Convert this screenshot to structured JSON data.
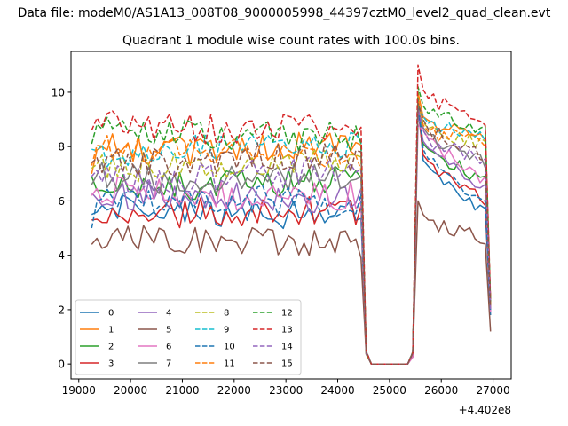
{
  "figure": {
    "suptitle": "Data file: modeM0/AS1A13_008T08_9000005998_44397cztM0_level2_quad_clean.evt",
    "title": "Quadrant 1 module wise count rates with 100.0s bins.",
    "x_offset_label": "+4.402e8"
  },
  "chart_data": {
    "type": "line",
    "title": "Quadrant 1 module wise count rates with 100.0s bins.",
    "xlabel": "",
    "ylabel": "",
    "x_offset": 440200000,
    "xlim": [
      18850,
      27350
    ],
    "ylim": [
      -0.55,
      11.5
    ],
    "grid": false,
    "legend_placement": "lower-left",
    "x_ticks": [
      19000,
      20000,
      21000,
      22000,
      23000,
      24000,
      25000,
      26000,
      27000
    ],
    "x_tick_labels": [
      "19000",
      "20000",
      "21000",
      "22000",
      "23000",
      "24000",
      "25000",
      "26000",
      "27000"
    ],
    "y_ticks": [
      0,
      2,
      4,
      6,
      8,
      10
    ],
    "y_tick_labels": [
      "0",
      "2",
      "4",
      "6",
      "8",
      "10"
    ],
    "segments": [
      {
        "start": 19250,
        "end": 24450,
        "step": 100
      },
      {
        "start": 24550,
        "end": 24650,
        "step": 100
      },
      {
        "start": 24750,
        "end": 25350,
        "step": 100
      },
      {
        "start": 25450,
        "end": 25550,
        "step": 100
      },
      {
        "start": 25550,
        "end": 26950,
        "step": 100
      }
    ],
    "series": [
      {
        "name": "0",
        "color": "#1f77b4",
        "dash": "solid",
        "level": 5.6,
        "first": 5.5,
        "peak": 9.8,
        "after": 7.2,
        "tail": 5.6,
        "end": 1.8
      },
      {
        "name": "1",
        "color": "#ff7f0e",
        "dash": "solid",
        "level": 8.0,
        "first": 7.0,
        "peak": 10.0,
        "after": 8.8,
        "tail": 8.4,
        "end": 2.2
      },
      {
        "name": "2",
        "color": "#2ca02c",
        "dash": "solid",
        "level": 6.6,
        "first": 6.9,
        "peak": 9.6,
        "after": 7.8,
        "tail": 6.8,
        "end": 1.9
      },
      {
        "name": "3",
        "color": "#d62728",
        "dash": "solid",
        "level": 5.5,
        "first": 5.3,
        "peak": 9.4,
        "after": 7.4,
        "tail": 6.0,
        "end": 1.9
      },
      {
        "name": "4",
        "color": "#9467bd",
        "dash": "solid",
        "level": 6.1,
        "first": 6.3,
        "peak": 9.2,
        "after": 7.9,
        "tail": 6.5,
        "end": 1.9
      },
      {
        "name": "5",
        "color": "#8c564b",
        "dash": "solid",
        "level": 4.5,
        "first": 4.4,
        "peak": 6.0,
        "after": 5.2,
        "tail": 4.6,
        "end": 1.2
      },
      {
        "name": "6",
        "color": "#e377c2",
        "dash": "solid",
        "level": 6.3,
        "first": 6.2,
        "peak": 8.8,
        "after": 8.3,
        "tail": 6.8,
        "end": 1.9
      },
      {
        "name": "7",
        "color": "#7f7f7f",
        "dash": "solid",
        "level": 6.9,
        "first": 6.6,
        "peak": 9.4,
        "after": 8.4,
        "tail": 7.4,
        "end": 2.0
      },
      {
        "name": "8",
        "color": "#bcbd22",
        "dash": "dashed",
        "level": 7.4,
        "first": 7.2,
        "peak": 9.6,
        "after": 8.6,
        "tail": 8.1,
        "end": 2.2
      },
      {
        "name": "9",
        "color": "#17becf",
        "dash": "dashed",
        "level": 7.9,
        "first": 7.9,
        "peak": 9.6,
        "after": 8.8,
        "tail": 8.4,
        "end": 2.3
      },
      {
        "name": "10",
        "color": "#1f77b4",
        "dash": "dashed",
        "level": 5.9,
        "first": 5.0,
        "peak": 9.5,
        "after": 7.6,
        "tail": 5.9,
        "end": 1.9
      },
      {
        "name": "11",
        "color": "#ff7f0e",
        "dash": "dashed",
        "level": 7.8,
        "first": 7.3,
        "peak": 9.8,
        "after": 8.5,
        "tail": 8.2,
        "end": 2.1
      },
      {
        "name": "12",
        "color": "#2ca02c",
        "dash": "dashed",
        "level": 8.5,
        "first": 8.1,
        "peak": 10.2,
        "after": 9.2,
        "tail": 8.7,
        "end": 2.3
      },
      {
        "name": "13",
        "color": "#d62728",
        "dash": "dashed",
        "level": 8.8,
        "first": 8.6,
        "peak": 11.0,
        "after": 9.8,
        "tail": 9.0,
        "end": 2.4
      },
      {
        "name": "14",
        "color": "#9467bd",
        "dash": "dashed",
        "level": 7.0,
        "first": 6.9,
        "peak": 9.4,
        "after": 8.3,
        "tail": 7.5,
        "end": 2.0
      },
      {
        "name": "15",
        "color": "#8c564b",
        "dash": "dashed",
        "level": 7.5,
        "first": 7.4,
        "peak": 9.6,
        "after": 8.7,
        "tail": 7.7,
        "end": 2.1
      }
    ]
  }
}
